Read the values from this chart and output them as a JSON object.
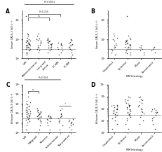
{
  "panel_A": {
    "title": "A",
    "ylabel": "Serum CA15-3 (kU·L⁻¹)",
    "categories": [
      "MM",
      "Adenocarcinoma",
      "Lung and\npleura",
      "PC-MM",
      "PC-BM"
    ],
    "ylim_log": [
      10,
      3000
    ],
    "cutoff": 30,
    "pval1": "ns",
    "pval2": "P=0.316",
    "pval3": "P<0.0001",
    "data": {
      "MM": [
        50,
        45,
        55,
        60,
        40,
        35,
        70,
        80,
        65,
        55,
        45,
        30,
        25,
        20,
        18,
        15,
        200,
        180,
        150,
        120,
        100,
        90,
        85,
        75,
        65,
        55,
        45,
        40,
        35,
        30,
        25,
        20,
        1500
      ],
      "Adenocarcinoma": [
        80,
        60,
        50,
        40,
        30,
        25,
        20,
        150,
        200,
        100,
        70,
        90,
        110,
        45,
        35
      ],
      "Lung and\npleura": [
        80,
        70,
        60,
        55,
        45,
        40,
        35,
        30,
        100,
        120,
        90,
        85,
        75,
        65,
        55,
        45,
        35,
        25,
        20
      ],
      "PC-MM": [
        35,
        30,
        25,
        20,
        15,
        40,
        45,
        50,
        55,
        60,
        65
      ],
      "PC-BM": [
        70,
        60,
        55,
        50,
        45,
        40,
        35,
        30,
        25,
        20,
        15,
        12,
        10,
        80,
        90,
        100
      ]
    }
  },
  "panel_B": {
    "title": "B",
    "ylabel": "Serum CA15-3 (kU·L⁻¹)",
    "xlabel": "MM histology",
    "categories": [
      "Unspecified",
      "Epithelial",
      "Mixed",
      "Sarcomatoid"
    ],
    "ylim_log": [
      10,
      3000
    ],
    "cutoff": 30,
    "data": {
      "Unspecified": [
        50,
        45,
        40,
        35,
        30,
        25,
        20,
        15,
        200,
        150,
        120,
        100,
        80,
        60
      ],
      "Epithelial": [
        80,
        70,
        60,
        55,
        50,
        45,
        40,
        35,
        30,
        25,
        20,
        150,
        120,
        100,
        90,
        85,
        75,
        65,
        55,
        45,
        40,
        35,
        30,
        25,
        20,
        18,
        15,
        1500
      ],
      "Mixed": [
        35,
        30,
        25,
        20,
        15,
        40,
        45
      ],
      "Sarcomatoid": [
        35,
        30,
        25,
        20,
        40
      ]
    }
  },
  "panel_C": {
    "title": "C",
    "ylabel": "Effusion CA15-3 (kU·L⁻¹)",
    "categories": [
      "MM",
      "Malignant",
      "Reactive",
      "Indeterminate",
      "Transudative"
    ],
    "ylim_log": [
      1,
      100000
    ],
    "cutoff": 30,
    "pval1": "ns",
    "pval2": "P<0.004",
    "data": {
      "MM": [
        200,
        180,
        160,
        140,
        120,
        100,
        90,
        80,
        70,
        60,
        50,
        45,
        40,
        35,
        30,
        25,
        20,
        15,
        10,
        5,
        2,
        1,
        500,
        1000,
        5000,
        300,
        250,
        400,
        600,
        800,
        1500,
        2000
      ],
      "Malignant": [
        200,
        180,
        160,
        140,
        120,
        100,
        90,
        80,
        70,
        60,
        50,
        45,
        40,
        35,
        30,
        25,
        20,
        15,
        10,
        5,
        2,
        1,
        300
      ],
      "Reactive": [
        35,
        30,
        25,
        20,
        15,
        10,
        5,
        2,
        1,
        40,
        45,
        50,
        55,
        60
      ],
      "Indeterminate": [
        100,
        80,
        60,
        50,
        40,
        30,
        20,
        15,
        10,
        5,
        2,
        1,
        200,
        300
      ],
      "Transudative": [
        10,
        8,
        5,
        3,
        2,
        1,
        15,
        12,
        20,
        25,
        7
      ]
    }
  },
  "panel_D": {
    "title": "D",
    "ylabel": "Effusion CA15-3 (kU·L⁻¹)",
    "xlabel": "MM histology",
    "categories": [
      "Unspecified",
      "Epithelial",
      "Mixed",
      "Sarcomatoid"
    ],
    "ylim_log": [
      1,
      10000
    ],
    "cutoff": 30,
    "data": {
      "Unspecified": [
        200,
        180,
        160,
        140,
        120,
        100,
        90,
        80,
        70,
        60,
        50,
        45,
        40,
        35,
        30,
        25,
        20,
        15,
        10,
        5,
        2,
        1
      ],
      "Epithelial": [
        200,
        180,
        160,
        140,
        120,
        100,
        90,
        80,
        70,
        60,
        50,
        45,
        40,
        35,
        30,
        25,
        20,
        15,
        10,
        5,
        2,
        1,
        500,
        1000,
        300,
        250,
        400,
        600,
        800
      ],
      "Mixed": [
        1000,
        800,
        600,
        500,
        400,
        300,
        200,
        150,
        100,
        80,
        60,
        50,
        40,
        30,
        20,
        10,
        5
      ],
      "Sarcomatoid": [
        100,
        80,
        60,
        50,
        40,
        30,
        20,
        15,
        10,
        5,
        2,
        50,
        70
      ]
    }
  },
  "dot_color": "#333333",
  "cutoff_color": "#aaaaaa",
  "bracket_color": "#333333",
  "background": "#ffffff"
}
